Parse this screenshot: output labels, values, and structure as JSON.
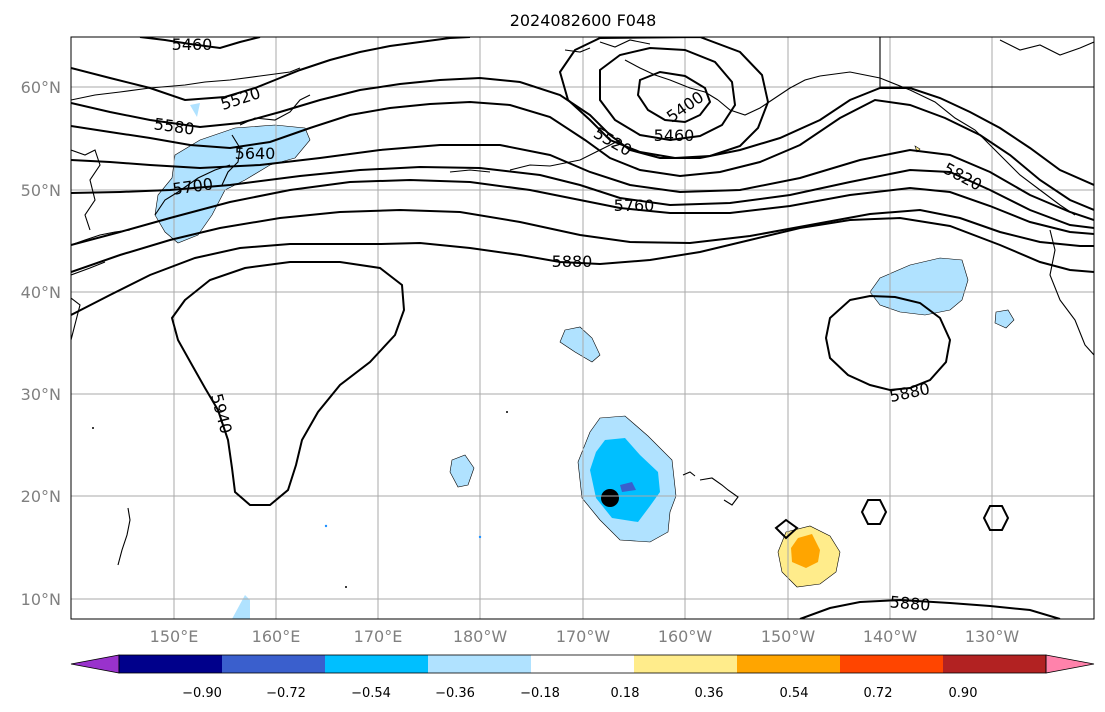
{
  "title": "2024082600 F048",
  "lat_labels": [
    "60°N",
    "50°N",
    "40°N",
    "30°N",
    "20°N",
    "10°N"
  ],
  "lon_labels": [
    "150°E",
    "160°E",
    "170°E",
    "180°W",
    "170°W",
    "160°W",
    "150°W",
    "140°W",
    "130°W"
  ],
  "colorbar": {
    "colors": [
      "#9932cc",
      "#00008b",
      "#3a5fcd",
      "#00bfff",
      "#b0e2ff",
      "#ffffff",
      "#ffec8b",
      "#ffa500",
      "#ff4500",
      "#b22222",
      "#ff82ab"
    ],
    "ticks": [
      "−0.90",
      "−0.72",
      "−0.54",
      "−0.36",
      "−0.18",
      "0.18",
      "0.36",
      "0.54",
      "0.72",
      "0.90"
    ]
  },
  "contour_labels": [
    "5460",
    "5520",
    "5580",
    "5640",
    "5700",
    "5400",
    "5520",
    "5460",
    "5760",
    "5820",
    "5880",
    "5880",
    "5940",
    "5880"
  ]
}
